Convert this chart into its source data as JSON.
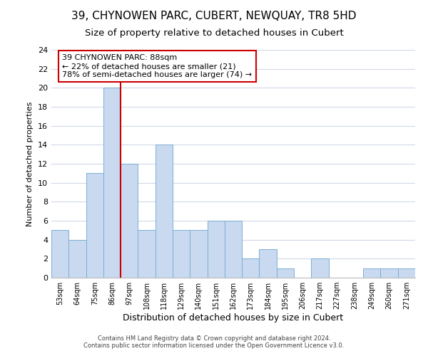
{
  "title": "39, CHYNOWEN PARC, CUBERT, NEWQUAY, TR8 5HD",
  "subtitle": "Size of property relative to detached houses in Cubert",
  "xlabel": "Distribution of detached houses by size in Cubert",
  "ylabel": "Number of detached properties",
  "bin_labels": [
    "53sqm",
    "64sqm",
    "75sqm",
    "86sqm",
    "97sqm",
    "108sqm",
    "118sqm",
    "129sqm",
    "140sqm",
    "151sqm",
    "162sqm",
    "173sqm",
    "184sqm",
    "195sqm",
    "206sqm",
    "217sqm",
    "227sqm",
    "238sqm",
    "249sqm",
    "260sqm",
    "271sqm"
  ],
  "bar_heights": [
    5,
    4,
    11,
    20,
    12,
    5,
    14,
    5,
    5,
    6,
    6,
    2,
    3,
    1,
    0,
    2,
    0,
    0,
    1,
    1,
    1
  ],
  "bar_color": "#c9d9f0",
  "bar_edge_color": "#7bafd4",
  "vline_x_index": 3.5,
  "vline_color": "#cc0000",
  "annotation_line1": "39 CHYNOWEN PARC: 88sqm",
  "annotation_line2": "← 22% of detached houses are smaller (21)",
  "annotation_line3": "78% of semi-detached houses are larger (74) →",
  "annotation_box_edge": "#cc0000",
  "annotation_fontsize": 8,
  "ylim": [
    0,
    24
  ],
  "yticks": [
    0,
    2,
    4,
    6,
    8,
    10,
    12,
    14,
    16,
    18,
    20,
    22,
    24
  ],
  "footer_text": "Contains HM Land Registry data © Crown copyright and database right 2024.\nContains public sector information licensed under the Open Government Licence v3.0.",
  "title_fontsize": 11,
  "subtitle_fontsize": 9.5,
  "xlabel_fontsize": 9,
  "ylabel_fontsize": 8,
  "grid_color": "#d0d8e8",
  "background_color": "#ffffff"
}
